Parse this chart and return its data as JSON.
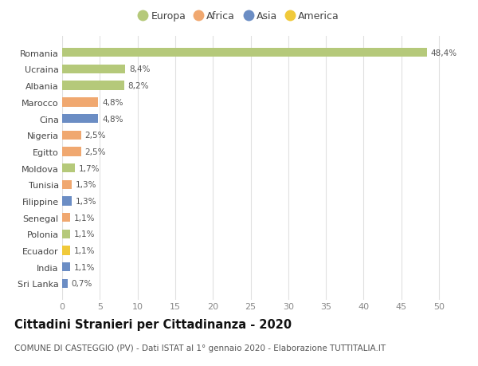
{
  "categories": [
    "Sri Lanka",
    "India",
    "Ecuador",
    "Polonia",
    "Senegal",
    "Filippine",
    "Tunisia",
    "Moldova",
    "Egitto",
    "Nigeria",
    "Cina",
    "Marocco",
    "Albania",
    "Ucraina",
    "Romania"
  ],
  "values": [
    0.7,
    1.1,
    1.1,
    1.1,
    1.1,
    1.3,
    1.3,
    1.7,
    2.5,
    2.5,
    4.8,
    4.8,
    8.2,
    8.4,
    48.4
  ],
  "labels": [
    "0,7%",
    "1,1%",
    "1,1%",
    "1,1%",
    "1,1%",
    "1,3%",
    "1,3%",
    "1,7%",
    "2,5%",
    "2,5%",
    "4,8%",
    "4,8%",
    "8,2%",
    "8,4%",
    "48,4%"
  ],
  "colors": [
    "#6b8dc4",
    "#6b8dc4",
    "#f0c93a",
    "#b5c97a",
    "#f0a870",
    "#6b8dc4",
    "#f0a870",
    "#b5c97a",
    "#f0a870",
    "#f0a870",
    "#6b8dc4",
    "#f0a870",
    "#b5c97a",
    "#b5c97a",
    "#b5c97a"
  ],
  "legend_labels": [
    "Europa",
    "Africa",
    "Asia",
    "America"
  ],
  "legend_colors": [
    "#b5c97a",
    "#f0a870",
    "#6b8dc4",
    "#f0c93a"
  ],
  "title": "Cittadini Stranieri per Cittadinanza - 2020",
  "subtitle": "COMUNE DI CASTEGGIO (PV) - Dati ISTAT al 1° gennaio 2020 - Elaborazione TUTTITALIA.IT",
  "xlim": [
    0,
    52
  ],
  "xticks": [
    0,
    5,
    10,
    15,
    20,
    25,
    30,
    35,
    40,
    45,
    50
  ],
  "background_color": "#ffffff",
  "grid_color": "#e0e0e0",
  "bar_height": 0.55,
  "label_fontsize": 7.5,
  "title_fontsize": 10.5,
  "subtitle_fontsize": 7.5,
  "ytick_fontsize": 8,
  "xtick_fontsize": 8
}
